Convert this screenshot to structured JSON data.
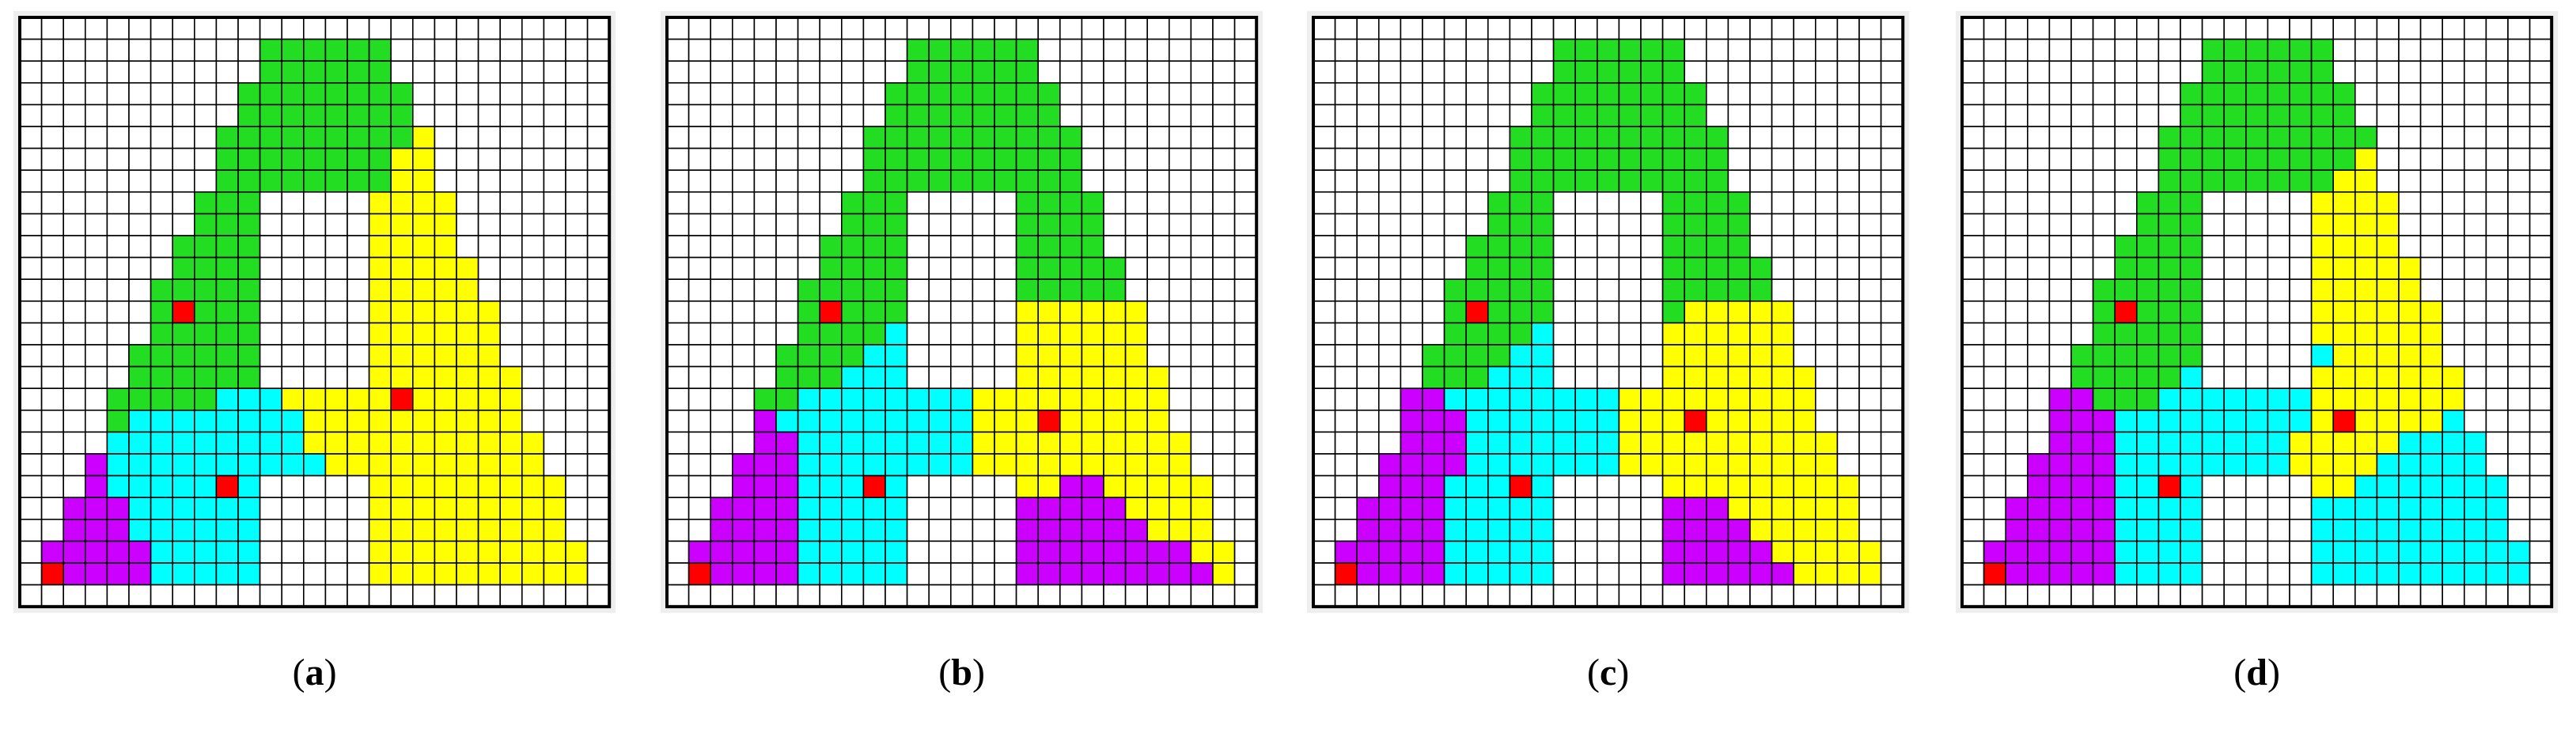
{
  "panels": [
    {
      "caption": [
        "(",
        "a",
        ")"
      ]
    },
    {
      "caption": [
        "(",
        "b",
        ")"
      ]
    },
    {
      "caption": [
        "(",
        "c",
        ")"
      ]
    },
    {
      "caption": [
        "(",
        "d",
        ")"
      ]
    }
  ]
}
